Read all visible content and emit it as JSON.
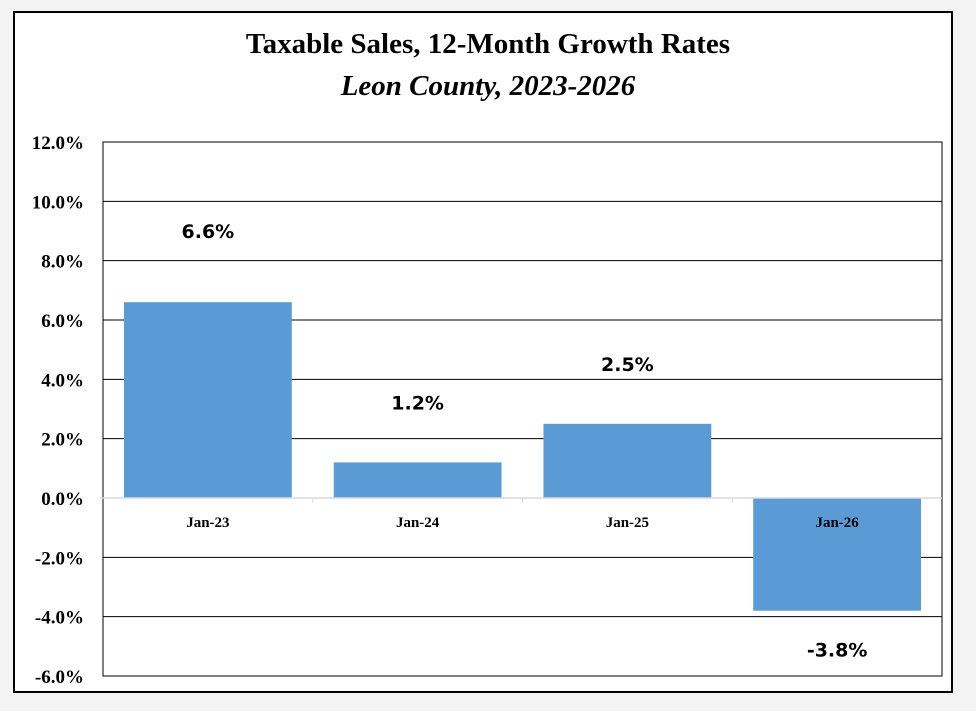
{
  "chart_data": {
    "type": "bar",
    "title": "Taxable Sales, 12-Month Growth Rates",
    "subtitle": "Leon County, 2023-2026",
    "xlabel": "",
    "ylabel": "",
    "categories": [
      "Jan-23",
      "Jan-24",
      "Jan-25",
      "Jan-26"
    ],
    "values": [
      6.6,
      1.2,
      2.5,
      -3.8
    ],
    "data_labels": [
      "6.6%",
      "1.2%",
      "2.5%",
      "-3.8%"
    ],
    "ylim": [
      -6.0,
      12.0
    ],
    "yticks": [
      12.0,
      10.0,
      8.0,
      6.0,
      4.0,
      2.0,
      0.0,
      -2.0,
      -4.0,
      -6.0
    ],
    "ytick_labels": [
      "12.0%",
      "10.0%",
      "8.0%",
      "6.0%",
      "4.0%",
      "2.0%",
      "0.0%",
      "-2.0%",
      "-4.0%",
      "-6.0%"
    ],
    "grid": true,
    "legend": "none",
    "bar_color": "#5b9bd5"
  }
}
